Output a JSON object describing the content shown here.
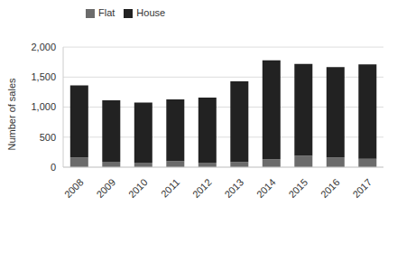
{
  "chart_data": {
    "type": "bar",
    "y_label": "Number of sales",
    "categories": [
      "2008",
      "2009",
      "2010",
      "2011",
      "2012",
      "2013",
      "2014",
      "2015",
      "2016",
      "2017"
    ],
    "series": [
      {
        "name": "Flat",
        "color": "#6b6b6b",
        "values": [
          160,
          90,
          75,
          100,
          75,
          85,
          130,
          190,
          160,
          140
        ]
      },
      {
        "name": "House",
        "color": "#222222",
        "values": [
          1200,
          1025,
          1000,
          1030,
          1085,
          1345,
          1650,
          1530,
          1505,
          1570
        ]
      }
    ],
    "stacked": true,
    "ylim": [
      0,
      2000
    ],
    "yticks": [
      0,
      500,
      {
        "value": 1000,
        "label": "1,000"
      },
      {
        "value": 1500,
        "label": "1,500"
      },
      {
        "value": 2000,
        "label": "2,000"
      }
    ],
    "grid": true,
    "legend": "top left"
  }
}
